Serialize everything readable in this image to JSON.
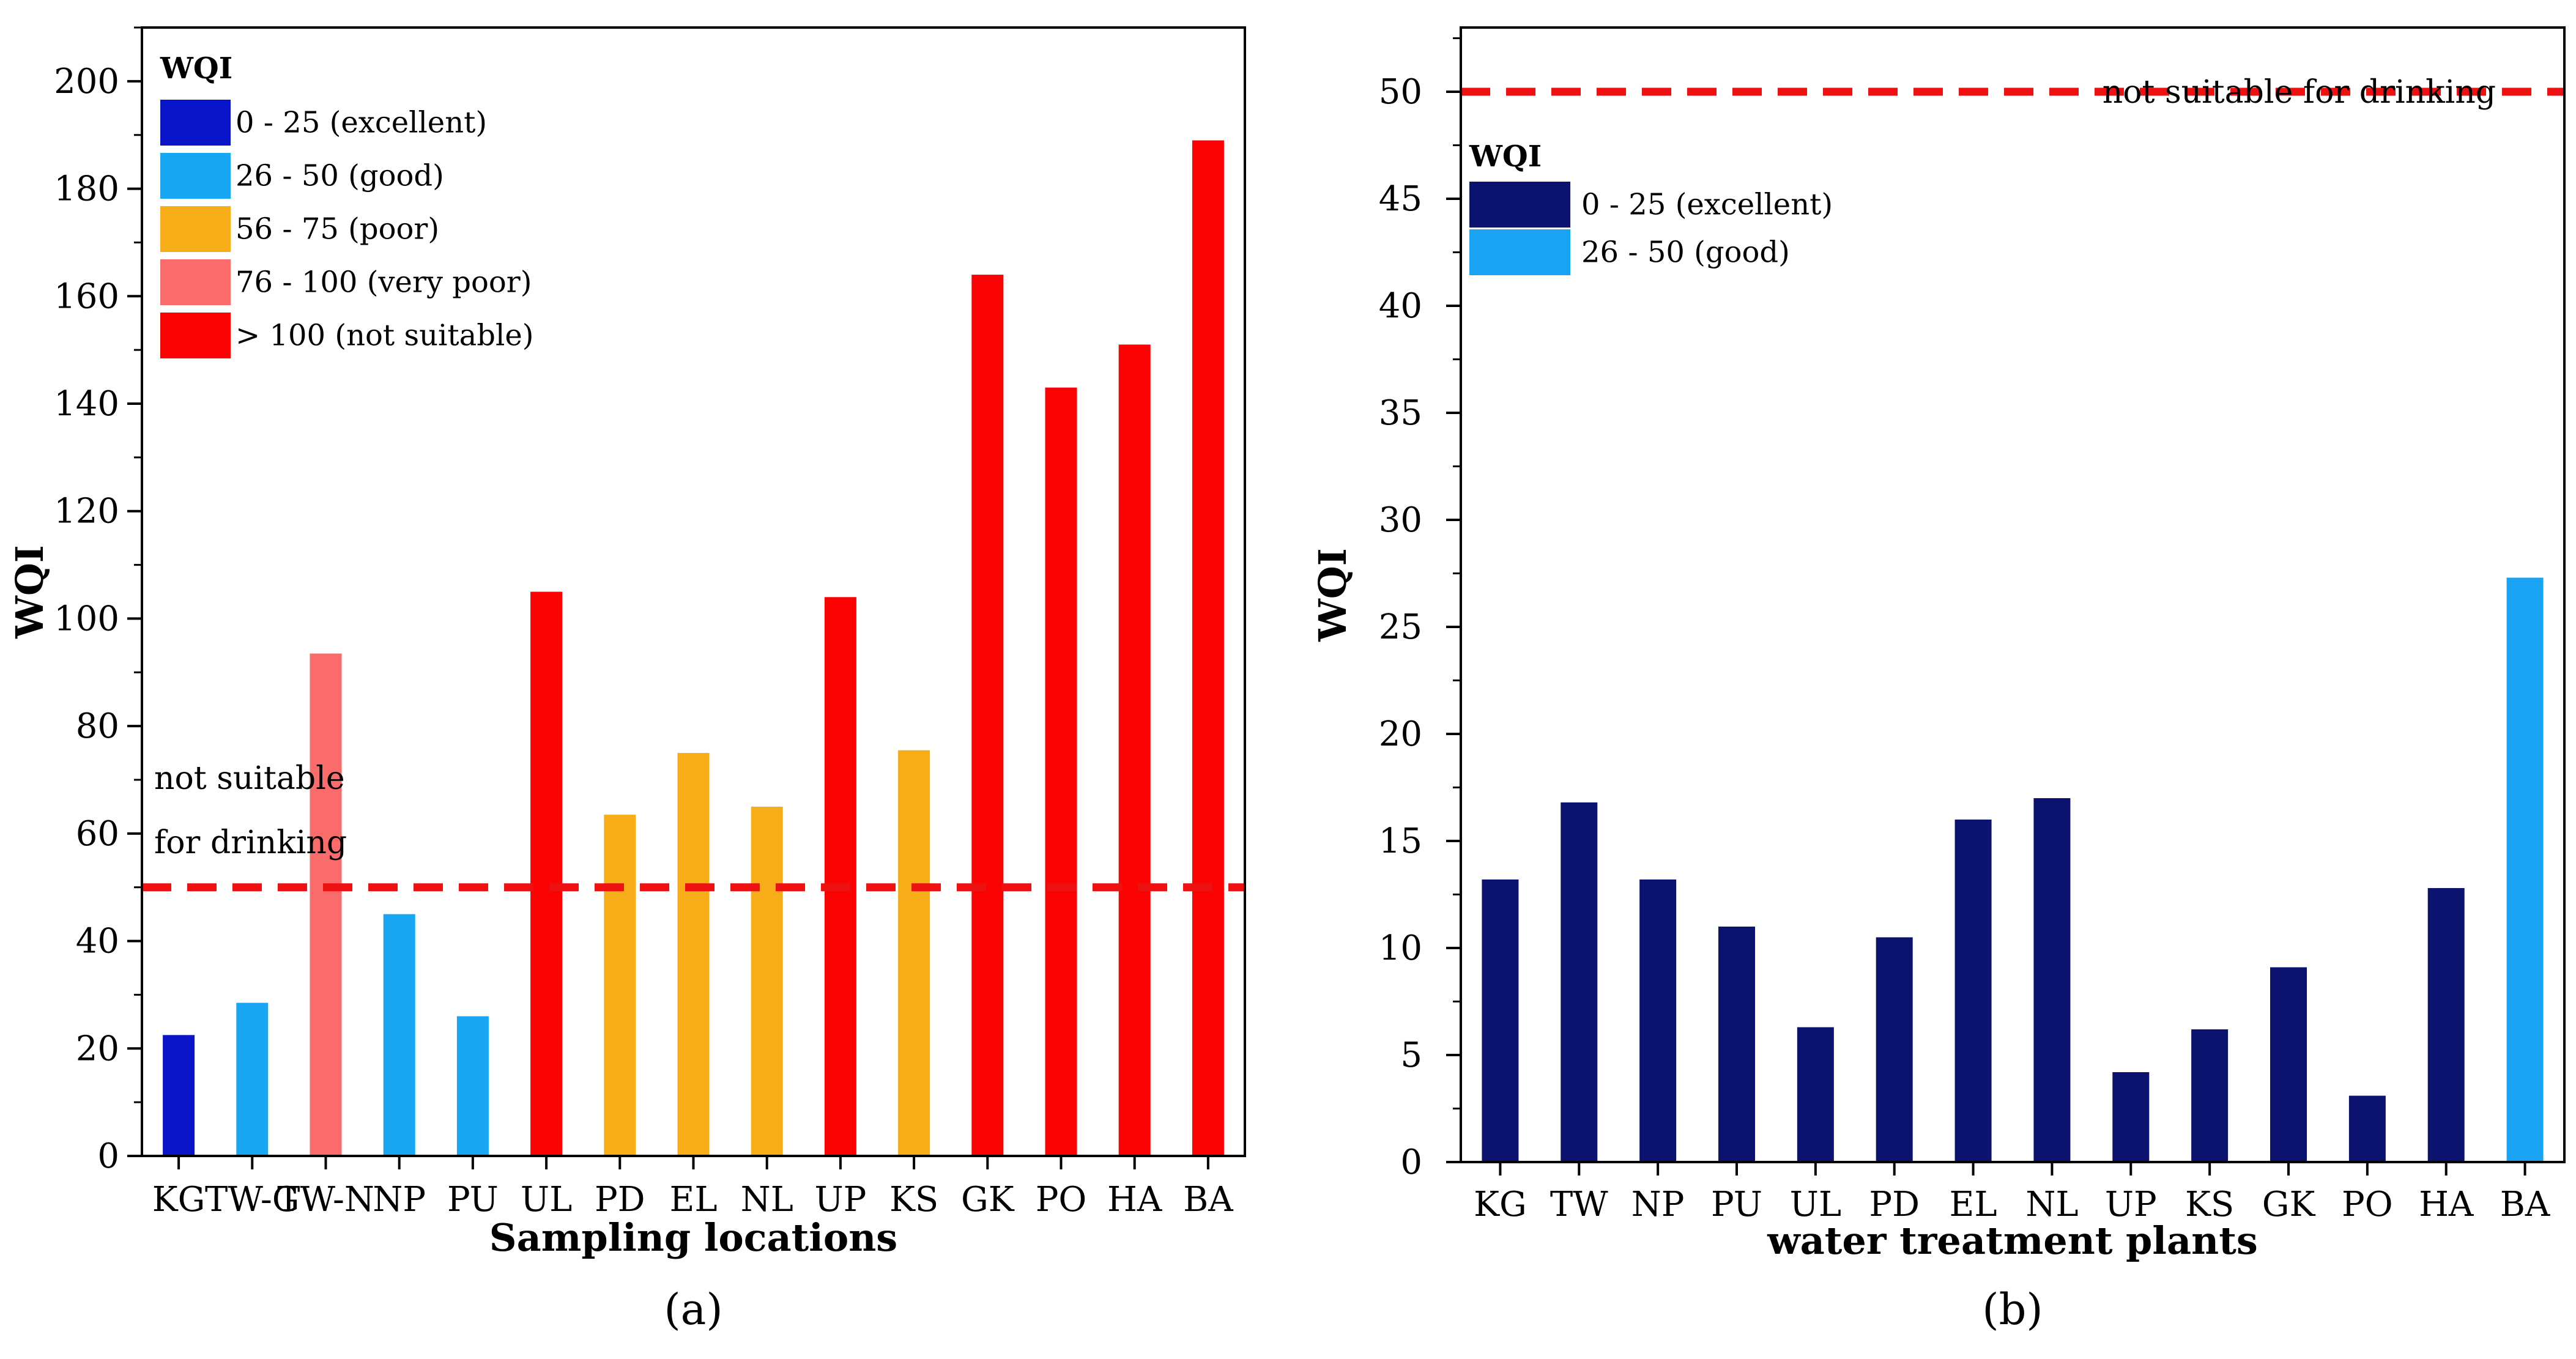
{
  "chart_data": [
    {
      "type": "bar",
      "panel_label": "(a)",
      "title": "",
      "xlabel": "Sampling locations",
      "ylabel": "WQI",
      "ylim": [
        0,
        210
      ],
      "yticks": [
        0,
        20,
        40,
        60,
        80,
        100,
        120,
        140,
        160,
        180,
        200
      ],
      "categories": [
        "KG",
        "TW-G",
        "TW-N",
        "NP",
        "PU",
        "UL",
        "PD",
        "EL",
        "NL",
        "UP",
        "KS",
        "GK",
        "PO",
        "HA",
        "BA"
      ],
      "x_tick_labels": [
        "KG",
        "TW-G",
        "TW-N",
        "NP",
        "PU",
        "UL",
        "PD",
        "EL",
        "NL",
        "UP",
        "KS",
        "GK",
        "PO",
        "HA",
        "BA"
      ],
      "values": [
        22.5,
        28.5,
        93.5,
        45,
        26,
        105,
        63.5,
        75,
        65,
        104,
        75.5,
        164,
        143,
        151,
        189
      ],
      "bar_classes": [
        "excellent",
        "good",
        "very_poor",
        "good",
        "good",
        "not_suitable",
        "poor",
        "poor",
        "poor",
        "not_suitable",
        "poor",
        "not_suitable",
        "not_suitable",
        "not_suitable",
        "not_suitable"
      ],
      "legend": {
        "title": "WQI",
        "position": "top-left",
        "entries": [
          {
            "key": "excellent",
            "label": "0 - 25 (excellent)",
            "color": "#0a14c8"
          },
          {
            "key": "good",
            "label": "26 - 50 (good)",
            "color": "#18a6f2"
          },
          {
            "key": "poor",
            "label": "56 - 75 (poor)",
            "color": "#f7ad18"
          },
          {
            "key": "very_poor",
            "label": "76 - 100 (very poor)",
            "color": "#fa6b6b"
          },
          {
            "key": "not_suitable",
            "label": "> 100 (not suitable)",
            "color": "#fb0303"
          }
        ]
      },
      "threshold": {
        "value": 50,
        "color": "#ee1111",
        "label_lines": [
          "not suitable",
          "for drinking"
        ]
      }
    },
    {
      "type": "bar",
      "panel_label": "(b)",
      "title": "",
      "xlabel": "water treatment plants",
      "ylabel": "WQI",
      "ylim": [
        0,
        53
      ],
      "yticks": [
        0,
        5,
        10,
        15,
        20,
        25,
        30,
        35,
        40,
        45,
        50
      ],
      "categories": [
        "KG",
        "TW",
        "NP",
        "PU",
        "UL",
        "PD",
        "EL",
        "NL",
        "UP",
        "KS",
        "GK",
        "PO",
        "HA",
        "BA"
      ],
      "x_tick_labels": [
        "KG",
        "TW",
        "NP",
        "PU",
        "UL",
        "PD",
        "EL",
        "NL",
        "UP",
        "KS",
        "GK",
        "PO",
        "HA",
        "BA"
      ],
      "values": [
        13.2,
        16.8,
        13.2,
        11,
        6.3,
        10.5,
        16,
        17,
        4.2,
        6.2,
        9.1,
        3.1,
        12.8,
        27.3
      ],
      "bar_classes": [
        "excellent",
        "excellent",
        "excellent",
        "excellent",
        "excellent",
        "excellent",
        "excellent",
        "excellent",
        "excellent",
        "excellent",
        "excellent",
        "excellent",
        "excellent",
        "good"
      ],
      "legend": {
        "title": "WQI",
        "position": "top-left",
        "entries": [
          {
            "key": "excellent",
            "label": "0 - 25 (excellent)",
            "color": "#0b136e"
          },
          {
            "key": "good",
            "label": "26 - 50 (good)",
            "color": "#1aa3f2"
          }
        ]
      },
      "threshold": {
        "value": 50,
        "color": "#ee1111",
        "label_lines": [
          "not suitable for drinking"
        ]
      }
    }
  ]
}
